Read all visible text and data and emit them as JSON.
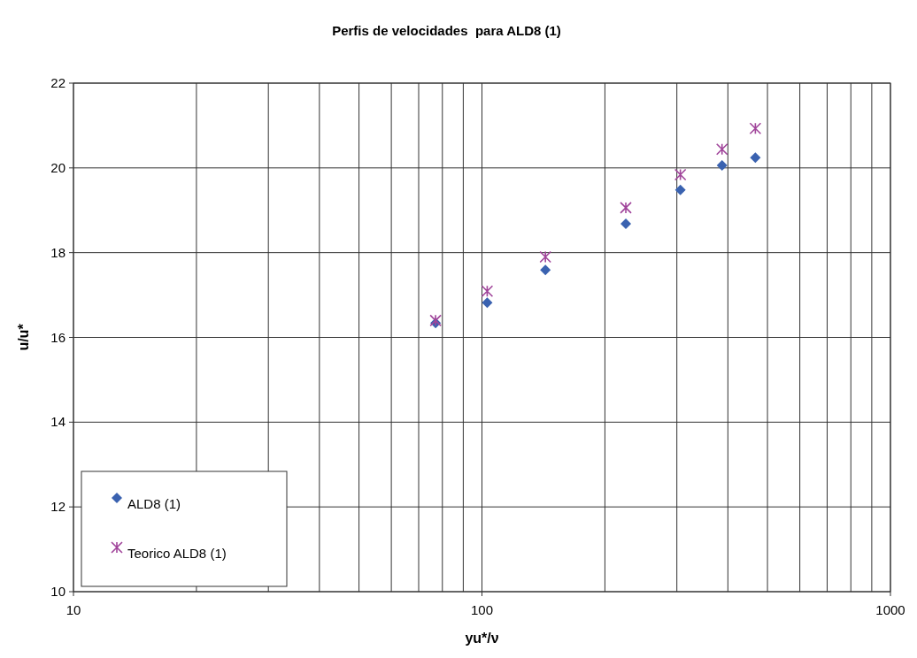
{
  "chart_data": {
    "type": "scatter",
    "title": "Perfis de velocidades  para ALD8 (1)",
    "xlabel": "yu*/ν",
    "ylabel": "u/u*",
    "log": "x",
    "xlim": [
      10,
      1000
    ],
    "xticks": [
      10,
      100,
      1000
    ],
    "ylim": [
      10,
      22
    ],
    "yticks": [
      10,
      12,
      14,
      16,
      18,
      20,
      22
    ],
    "grid": true,
    "legend": "bottom left",
    "x": [
      77,
      103,
      143,
      225,
      306,
      387,
      467
    ],
    "series": [
      {
        "name": "ALD8 (1)",
        "color": "#3a62b0",
        "marker": "diamond",
        "values": [
          16.34,
          16.82,
          17.59,
          18.68,
          19.48,
          20.06,
          20.24
        ]
      },
      {
        "name": "Teorico ALD8 (1)",
        "color": "#a0449a",
        "marker": "cross",
        "values": [
          16.4,
          17.09,
          17.9,
          19.06,
          19.84,
          20.44,
          20.93
        ]
      }
    ]
  }
}
